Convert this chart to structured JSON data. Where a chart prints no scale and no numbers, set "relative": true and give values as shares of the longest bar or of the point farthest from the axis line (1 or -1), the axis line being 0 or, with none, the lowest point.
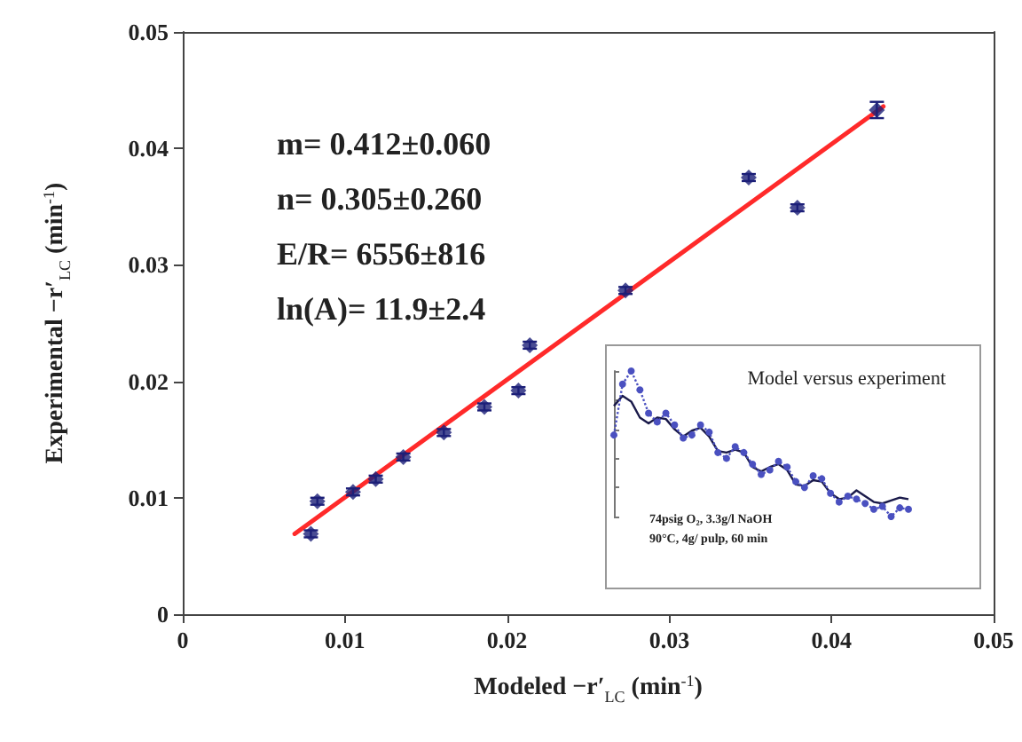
{
  "chart_data": [
    {
      "type": "scatter",
      "xlabel": "Modeled −r′$_{LC}$ (min$^{-1}$)",
      "ylabel": "Experimental −r′$_{LC}$ (min$^{-1}$)",
      "xlim": [
        0,
        0.05
      ],
      "ylim": [
        0,
        0.05
      ],
      "xticks": [
        0,
        0.01,
        0.02,
        0.03,
        0.04,
        0.05
      ],
      "yticks": [
        0,
        0.01,
        0.02,
        0.03,
        0.04,
        0.05
      ],
      "grid": false,
      "annotations": [
        "m= 0.412±0.060",
        "n= 0.305±0.260",
        "E/R= 6556±816",
        "ln(A)= 11.9±2.4"
      ],
      "series": [
        {
          "type": "scatter",
          "marker": "diamond",
          "color": "#1c1f78",
          "x": [
            0.0079,
            0.0083,
            0.0105,
            0.0119,
            0.0136,
            0.0161,
            0.0186,
            0.0207,
            0.0214,
            0.0273,
            0.0349,
            0.0379,
            0.0428
          ],
          "values": [
            0.0069,
            0.0097,
            0.0105,
            0.0116,
            0.0135,
            0.0156,
            0.0178,
            0.0192,
            0.0231,
            0.0278,
            0.0375,
            0.0349,
            0.0433
          ],
          "errors": [
            0.0003,
            0.0003,
            0.0003,
            0.0003,
            0.0003,
            0.0003,
            0.0003,
            0.0003,
            0.0003,
            0.0003,
            0.0003,
            0.0003,
            0.0007
          ]
        },
        {
          "type": "line",
          "marker": "none",
          "color": "#ff2a2a",
          "x": [
            0.0069,
            0.0432
          ],
          "values": [
            0.0069,
            0.0436
          ]
        }
      ]
    },
    {
      "type": "line",
      "title": "Model versus experiment",
      "relative": true,
      "annotations": [
        "74psig O₂, 3.3g/l NaOH",
        "90°C, 4g/ pulp, 60 min"
      ],
      "categories": [
        null,
        null,
        null,
        null,
        null,
        null,
        null,
        null,
        null,
        null,
        null,
        null,
        null,
        null,
        null,
        null,
        null,
        null,
        null,
        null,
        null,
        null,
        null,
        null,
        null,
        null,
        null,
        null,
        null,
        null,
        null,
        null,
        null,
        null,
        null
      ],
      "series": [
        {
          "color": "#1a1a4a",
          "marker": "none",
          "line_style": "solid",
          "values": [
            0.76,
            0.83,
            0.79,
            0.68,
            0.64,
            0.68,
            0.67,
            0.6,
            0.55,
            0.59,
            0.61,
            0.55,
            0.45,
            0.44,
            0.46,
            0.44,
            0.34,
            0.31,
            0.34,
            0.36,
            0.32,
            0.22,
            0.21,
            0.25,
            0.24,
            0.16,
            0.12,
            0.13,
            0.18,
            0.14,
            0.1,
            0.09,
            0.11,
            0.13,
            0.12
          ]
        },
        {
          "color": "#4a50c0",
          "marker": "circle",
          "line_style": "dotted",
          "values": [
            0.56,
            0.91,
            1,
            0.87,
            0.71,
            0.65,
            0.71,
            0.63,
            0.54,
            0.56,
            0.63,
            0.58,
            0.44,
            0.4,
            0.48,
            0.44,
            0.36,
            0.29,
            0.32,
            0.38,
            0.34,
            0.24,
            0.2,
            0.28,
            0.26,
            0.16,
            0.1,
            0.14,
            0.12,
            0.09,
            0.05,
            0.07,
            0,
            0.06,
            0.05
          ]
        }
      ]
    }
  ]
}
